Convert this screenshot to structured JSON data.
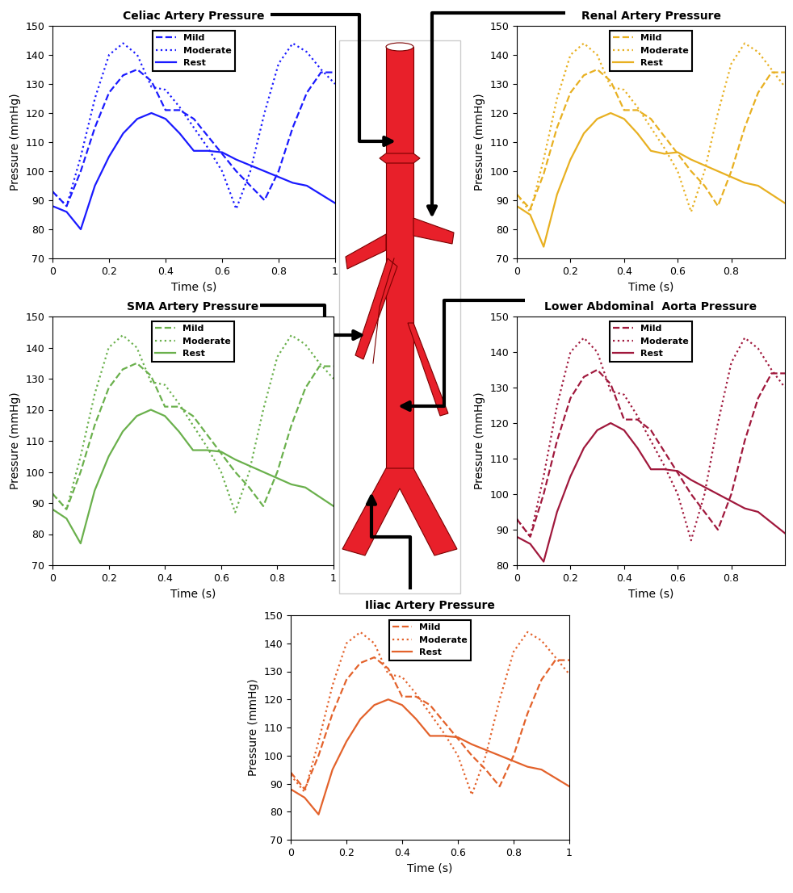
{
  "chart_data": [
    {
      "type": "line",
      "title": "Celiac Artery Pressure",
      "x_label": "Time (s)",
      "y_label": "Pressure (mmHg)",
      "x": [
        0,
        0.05,
        0.1,
        0.15,
        0.2,
        0.25,
        0.3,
        0.35,
        0.4,
        0.45,
        0.5,
        0.55,
        0.6,
        0.65,
        0.7,
        0.75,
        0.8,
        0.85,
        0.9,
        0.95,
        1
      ],
      "xlim": [
        0,
        1
      ],
      "ylim": [
        70,
        150
      ],
      "xticks": [
        0,
        0.2,
        0.4,
        0.6,
        0.8,
        1
      ],
      "yticks": [
        70,
        80,
        90,
        100,
        110,
        120,
        130,
        140,
        150
      ],
      "legend": "upper center",
      "series": [
        {
          "name": "Mild",
          "color": "#1a1aff",
          "line_style": "dashed",
          "values": [
            93,
            88,
            100,
            115,
            127,
            133,
            135,
            131,
            121,
            121,
            118,
            112,
            106,
            100,
            95,
            90,
            100,
            115,
            127,
            134,
            134
          ]
        },
        {
          "name": "Moderate",
          "color": "#1a1aff",
          "line_style": "dotted",
          "values": [
            93,
            88,
            105,
            125,
            140,
            144,
            140,
            129,
            128,
            122,
            115,
            108,
            100,
            87,
            100,
            120,
            137,
            144,
            141,
            135,
            130
          ]
        },
        {
          "name": "Rest",
          "color": "#1a1aff",
          "line_style": "solid",
          "values": [
            88,
            86,
            80,
            95,
            105,
            113,
            118,
            120,
            118,
            113,
            107,
            107,
            106.5,
            104,
            102,
            100,
            98,
            96,
            95,
            92,
            89
          ]
        }
      ]
    },
    {
      "type": "line",
      "title": "Renal Artery Pressure",
      "x_label": "Time (s)",
      "y_label": "Pressure (mmHg)",
      "x": [
        0,
        0.05,
        0.1,
        0.15,
        0.2,
        0.25,
        0.3,
        0.35,
        0.4,
        0.45,
        0.5,
        0.55,
        0.6,
        0.65,
        0.7,
        0.75,
        0.8,
        0.85,
        0.9,
        0.95,
        1
      ],
      "xlim": [
        0,
        1
      ],
      "ylim": [
        70,
        150
      ],
      "xticks": [
        0,
        0.2,
        0.4,
        0.6,
        0.8
      ],
      "yticks": [
        70,
        80,
        90,
        100,
        110,
        120,
        130,
        140,
        150
      ],
      "legend": "upper center",
      "series": [
        {
          "name": "Mild",
          "color": "#e8b021",
          "line_style": "dashed",
          "values": [
            92,
            87,
            99,
            115,
            127,
            133,
            135,
            131,
            121,
            121,
            118,
            112,
            106,
            100,
            95,
            88,
            100,
            115,
            127,
            134,
            134
          ]
        },
        {
          "name": "Moderate",
          "color": "#e8b021",
          "line_style": "dotted",
          "values": [
            92,
            86,
            104,
            125,
            140,
            144,
            140,
            129,
            128,
            122,
            115,
            108,
            100,
            86,
            100,
            120,
            137,
            144,
            141,
            135,
            129
          ]
        },
        {
          "name": "Rest",
          "color": "#e8b021",
          "line_style": "solid",
          "values": [
            88,
            85,
            74,
            92,
            104,
            113,
            118,
            120,
            118,
            113,
            107,
            106,
            106.5,
            104,
            102,
            100,
            98,
            96,
            95,
            92,
            89
          ]
        }
      ]
    },
    {
      "type": "line",
      "title": "SMA Artery Pressure",
      "x_label": "Time (s)",
      "y_label": "Pressure (mmHg)",
      "x": [
        0,
        0.05,
        0.1,
        0.15,
        0.2,
        0.25,
        0.3,
        0.35,
        0.4,
        0.45,
        0.5,
        0.55,
        0.6,
        0.65,
        0.7,
        0.75,
        0.8,
        0.85,
        0.9,
        0.95,
        1
      ],
      "xlim": [
        0,
        1
      ],
      "ylim": [
        70,
        150
      ],
      "xticks": [
        0,
        0.2,
        0.4,
        0.6,
        0.8,
        1
      ],
      "yticks": [
        70,
        80,
        90,
        100,
        110,
        120,
        130,
        140,
        150
      ],
      "legend": "upper center",
      "series": [
        {
          "name": "Mild",
          "color": "#6ab04c",
          "line_style": "dashed",
          "values": [
            93,
            88,
            100,
            115,
            127,
            133,
            135,
            131,
            121,
            121,
            118,
            112,
            106,
            100,
            95,
            89,
            100,
            115,
            127,
            134,
            134
          ]
        },
        {
          "name": "Moderate",
          "color": "#6ab04c",
          "line_style": "dotted",
          "values": [
            93,
            88,
            105,
            125,
            140,
            144,
            140,
            129,
            128,
            122,
            115,
            108,
            100,
            87,
            100,
            120,
            137,
            144,
            141,
            135,
            130
          ]
        },
        {
          "name": "Rest",
          "color": "#6ab04c",
          "line_style": "solid",
          "values": [
            88,
            85,
            77,
            94,
            105,
            113,
            118,
            120,
            118,
            113,
            107,
            107,
            106.5,
            104,
            102,
            100,
            98,
            96,
            95,
            92,
            89
          ]
        }
      ]
    },
    {
      "type": "line",
      "title": "Lower Abdominal  Aorta Pressure",
      "x_label": "Time (s)",
      "y_label": "Pressure (mmHg)",
      "x": [
        0,
        0.05,
        0.1,
        0.15,
        0.2,
        0.25,
        0.3,
        0.35,
        0.4,
        0.45,
        0.5,
        0.55,
        0.6,
        0.65,
        0.7,
        0.75,
        0.8,
        0.85,
        0.9,
        0.95,
        1
      ],
      "xlim": [
        0,
        1
      ],
      "ylim": [
        80,
        150
      ],
      "xticks": [
        0,
        0.2,
        0.4,
        0.6,
        0.8
      ],
      "yticks": [
        80,
        90,
        100,
        110,
        120,
        130,
        140,
        150
      ],
      "legend": "upper center",
      "series": [
        {
          "name": "Mild",
          "color": "#a0183c",
          "line_style": "dashed",
          "values": [
            93,
            88,
            100,
            115,
            127,
            133,
            135,
            131,
            121,
            121,
            118,
            112,
            106,
            100,
            95,
            90,
            100,
            115,
            127,
            134,
            134
          ]
        },
        {
          "name": "Moderate",
          "color": "#a0183c",
          "line_style": "dotted",
          "values": [
            93,
            88,
            105,
            125,
            140,
            144,
            140,
            129,
            128,
            122,
            115,
            108,
            100,
            87,
            100,
            120,
            137,
            144,
            141,
            135,
            130
          ]
        },
        {
          "name": "Rest",
          "color": "#a0183c",
          "line_style": "solid",
          "values": [
            88,
            86,
            81,
            95,
            105,
            113,
            118,
            120,
            118,
            113,
            107,
            107,
            106.5,
            104,
            102,
            100,
            98,
            96,
            95,
            92,
            89
          ]
        }
      ]
    },
    {
      "type": "line",
      "title": "Iliac Artery Pressure",
      "x_label": "Time (s)",
      "y_label": "Pressure (mmHg)",
      "x": [
        0,
        0.05,
        0.1,
        0.15,
        0.2,
        0.25,
        0.3,
        0.35,
        0.4,
        0.45,
        0.5,
        0.55,
        0.6,
        0.65,
        0.7,
        0.75,
        0.8,
        0.85,
        0.9,
        0.95,
        1
      ],
      "xlim": [
        0,
        1
      ],
      "ylim": [
        70,
        150
      ],
      "xticks": [
        0,
        0.2,
        0.4,
        0.6,
        0.8,
        1
      ],
      "yticks": [
        70,
        80,
        90,
        100,
        110,
        120,
        130,
        140,
        150
      ],
      "legend": "upper center",
      "series": [
        {
          "name": "Mild",
          "color": "#e3622b",
          "line_style": "dashed",
          "values": [
            94,
            88,
            100,
            115,
            127,
            133,
            135,
            131,
            121,
            121,
            118,
            112,
            106,
            100,
            95,
            89,
            100,
            115,
            127,
            134,
            134
          ]
        },
        {
          "name": "Moderate",
          "color": "#e3622b",
          "line_style": "dotted",
          "values": [
            93,
            87,
            105,
            125,
            140,
            144,
            140,
            129,
            128,
            122,
            115,
            108,
            100,
            86,
            100,
            120,
            137,
            144,
            141,
            135,
            129
          ]
        },
        {
          "name": "Rest",
          "color": "#e3622b",
          "line_style": "solid",
          "values": [
            88,
            85,
            79,
            95,
            105,
            113,
            118,
            120,
            118,
            113,
            107,
            107,
            106.5,
            104,
            102,
            100,
            98,
            96,
            95,
            92,
            89
          ]
        }
      ]
    }
  ]
}
